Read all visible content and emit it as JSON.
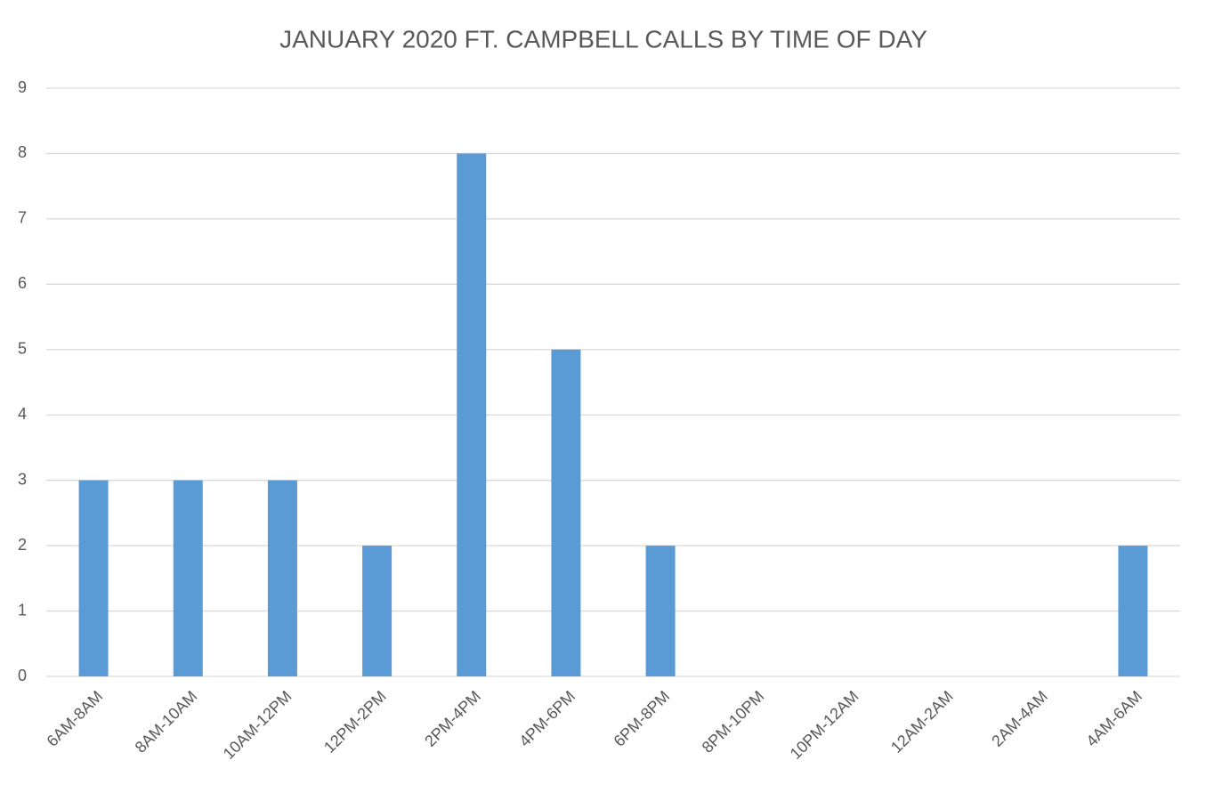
{
  "chart_data": {
    "type": "bar",
    "title": "JANUARY 2020 FT. CAMPBELL CALLS BY TIME OF DAY",
    "categories": [
      "6AM-8AM",
      "8AM-10AM",
      "10AM-12PM",
      "12PM-2PM",
      "2PM-4PM",
      "4PM-6PM",
      "6PM-8PM",
      "8PM-10PM",
      "10PM-12AM",
      "12AM-2AM",
      "2AM-4AM",
      "4AM-6AM"
    ],
    "values": [
      3,
      3,
      3,
      2,
      8,
      5,
      2,
      0,
      0,
      0,
      0,
      2
    ],
    "color": "#5b9bd5",
    "ylim": [
      0,
      9
    ],
    "yticks": [
      0,
      1,
      2,
      3,
      4,
      5,
      6,
      7,
      8,
      9
    ],
    "grid": true
  }
}
